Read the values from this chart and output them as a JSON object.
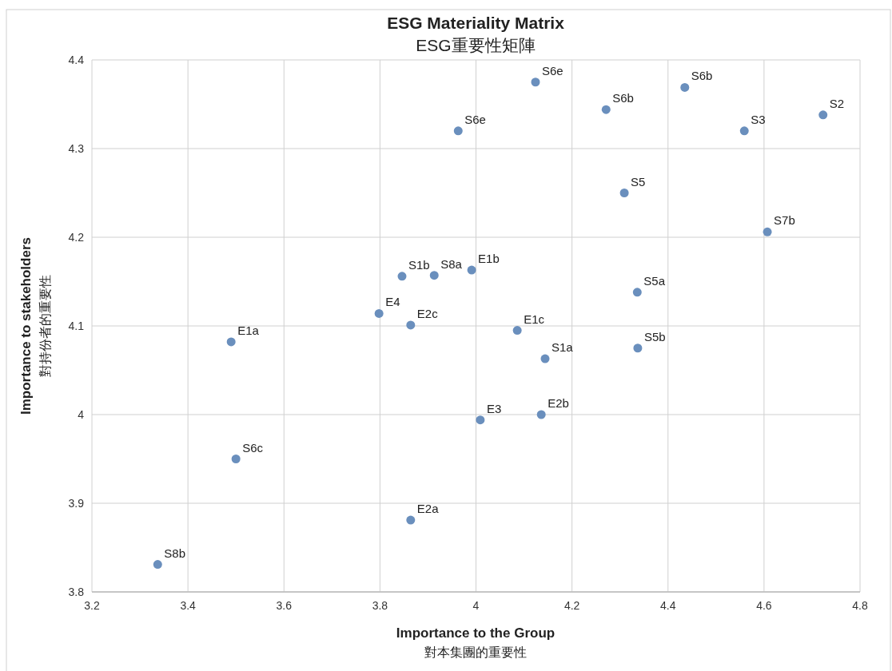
{
  "chart_data": {
    "type": "scatter",
    "title": "ESG Materiality Matrix",
    "subtitle": "ESG重要性矩陣",
    "xlabel": "Importance to the Group\n對本集團的重要性",
    "ylabel": "Importance to stakeholders\n對持份者的重要性",
    "x": [
      4.124,
      3.963,
      4.271,
      4.435,
      4.723,
      4.559,
      4.309,
      4.607,
      3.846,
      3.913,
      3.991,
      4.336,
      3.798,
      3.864,
      4.086,
      3.49,
      4.144,
      4.337,
      4.009,
      4.136,
      3.5,
      3.864,
      3.337
    ],
    "values": [
      4.375,
      4.32,
      4.344,
      4.369,
      4.338,
      4.32,
      4.25,
      4.206,
      4.156,
      4.157,
      4.163,
      4.138,
      4.114,
      4.101,
      4.095,
      4.082,
      4.063,
      4.075,
      3.994,
      4.0,
      3.95,
      3.881,
      3.831
    ],
    "color": "#6a8fbd",
    "marker": "circle",
    "annotations": [
      {
        "text": "S6e",
        "x": 4.124,
        "y": 4.375
      },
      {
        "text": "S6e",
        "x": 3.963,
        "y": 4.32
      },
      {
        "text": "S6b",
        "x": 4.271,
        "y": 4.344
      },
      {
        "text": "S6b",
        "x": 4.435,
        "y": 4.369
      },
      {
        "text": "S2",
        "x": 4.723,
        "y": 4.338
      },
      {
        "text": "S3",
        "x": 4.559,
        "y": 4.32
      },
      {
        "text": "S5",
        "x": 4.309,
        "y": 4.25
      },
      {
        "text": "S7b",
        "x": 4.607,
        "y": 4.206
      },
      {
        "text": "S1b",
        "x": 3.846,
        "y": 4.156
      },
      {
        "text": "S8a",
        "x": 3.913,
        "y": 4.157
      },
      {
        "text": "E1b",
        "x": 3.991,
        "y": 4.163
      },
      {
        "text": "S5a",
        "x": 4.336,
        "y": 4.138
      },
      {
        "text": "E4",
        "x": 3.798,
        "y": 4.114
      },
      {
        "text": "E2c",
        "x": 3.864,
        "y": 4.101
      },
      {
        "text": "E1c",
        "x": 4.086,
        "y": 4.095
      },
      {
        "text": "E1a",
        "x": 3.49,
        "y": 4.082
      },
      {
        "text": "S1a",
        "x": 4.144,
        "y": 4.063
      },
      {
        "text": "S5b",
        "x": 4.337,
        "y": 4.075
      },
      {
        "text": "E3",
        "x": 4.009,
        "y": 3.994
      },
      {
        "text": "E2b",
        "x": 4.136,
        "y": 4.0
      },
      {
        "text": "S6c",
        "x": 3.5,
        "y": 3.95
      },
      {
        "text": "E2a",
        "x": 3.864,
        "y": 3.881
      },
      {
        "text": "S8b",
        "x": 3.337,
        "y": 3.831
      }
    ],
    "xlim": [
      3.2,
      4.8
    ],
    "xticks": [
      3.2,
      3.4,
      3.6,
      3.8,
      4,
      4.2,
      4.4,
      4.6,
      4.8
    ],
    "ylim": [
      3.8,
      4.4
    ],
    "yticks": [
      3.8,
      3.9,
      4,
      4.1,
      4.2,
      4.3,
      4.4
    ],
    "grid": true
  }
}
